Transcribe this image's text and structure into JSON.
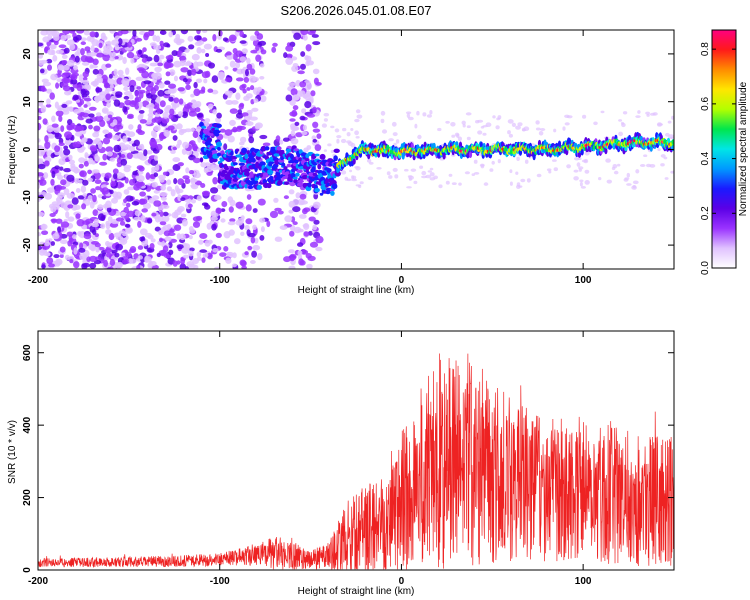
{
  "figure": {
    "title": "S206.2026.045.01.08.E07"
  },
  "chart_data": [
    {
      "type": "heatmap",
      "xlabel": "Height of straight line (km)",
      "ylabel": "Frequency (Hz)",
      "xlim": [
        -200,
        150
      ],
      "ylim": [
        -25,
        25
      ],
      "x_ticks": [
        -200,
        -100,
        0,
        100
      ],
      "y_ticks": [
        -20,
        -10,
        0,
        10,
        20
      ],
      "colorbar": {
        "label": "Normalized spectral amplitude",
        "range": [
          0.0,
          0.87
        ],
        "ticks": [
          0.0,
          0.2,
          0.4,
          0.6,
          0.8
        ],
        "colormap": [
          "#ffffff",
          "#e0c2ff",
          "#9a33ff",
          "#5b00e6",
          "#1a1aff",
          "#0099ff",
          "#00e6e6",
          "#00e64d",
          "#b3ff00",
          "#ffe600",
          "#ff8c00",
          "#ff1a1a",
          "#ff0080"
        ]
      },
      "features": {
        "noise_region_x": [
          -200,
          -45
        ],
        "signal_ridge": [
          [
            -100,
            -4
          ],
          [
            -80,
            -4
          ],
          [
            -60,
            -3
          ],
          [
            -40,
            -6
          ],
          [
            -30,
            -2
          ],
          [
            -20,
            0
          ],
          [
            0,
            -0.5
          ],
          [
            20,
            0
          ],
          [
            50,
            0
          ],
          [
            80,
            0
          ],
          [
            100,
            0.5
          ],
          [
            130,
            1.5
          ],
          [
            150,
            1.5
          ]
        ]
      }
    },
    {
      "type": "line",
      "xlabel": "Height of straight line (km)",
      "ylabel": "SNR (10 * v/v)",
      "xlim": [
        -200,
        150
      ],
      "ylim": [
        0,
        660
      ],
      "x_ticks": [
        -200,
        -100,
        0,
        100
      ],
      "y_ticks": [
        0,
        200,
        400,
        600
      ],
      "color": "#ee2222",
      "envelope": {
        "x": [
          -200,
          -150,
          -120,
          -100,
          -80,
          -70,
          -60,
          -50,
          -40,
          -30,
          -20,
          -10,
          0,
          10,
          20,
          30,
          40,
          50,
          60,
          80,
          100,
          120,
          150
        ],
        "mean": [
          20,
          22,
          25,
          30,
          40,
          45,
          40,
          30,
          35,
          90,
          110,
          140,
          180,
          250,
          300,
          290,
          300,
          270,
          250,
          220,
          230,
          200,
          190
        ],
        "amplitude": [
          12,
          14,
          16,
          18,
          30,
          50,
          40,
          25,
          40,
          100,
          120,
          150,
          200,
          250,
          300,
          300,
          290,
          260,
          230,
          200,
          200,
          190,
          180
        ]
      }
    }
  ]
}
